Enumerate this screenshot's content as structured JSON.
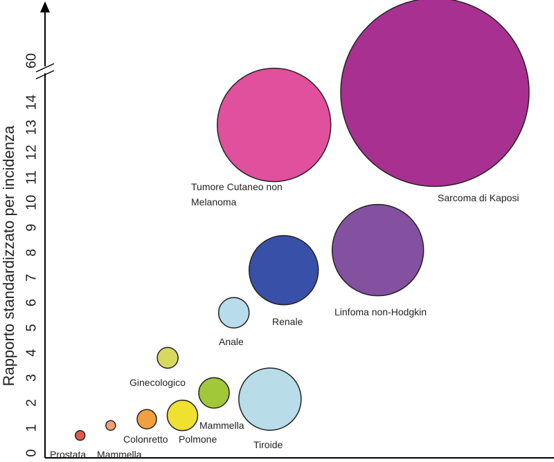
{
  "chart_data": {
    "type": "scatter",
    "y_label": "Rapporto standardizzato per incidenza",
    "categories": [
      "Prostata",
      "Mammella",
      "Colonretto",
      "Polmone",
      "Mammella",
      "Tiroide",
      "Ginecologico",
      "Anale",
      "Renale",
      "Linfoma non-Hodgkin",
      "Tumore Cutaneo non Melanoma",
      "Sarcoma di Kaposi"
    ],
    "x": [
      6.9,
      12.9,
      20,
      27,
      33.2,
      44.2,
      24.1,
      37.1,
      46.9,
      65.4,
      45,
      76.6
    ],
    "values": [
      0.7,
      1.1,
      1.35,
      1.5,
      2.4,
      2.15,
      3.8,
      5.6,
      7.3,
      8.1,
      13.1,
      14.4
    ],
    "sizes": [
      7,
      7,
      14,
      22,
      22,
      45,
      15,
      22,
      50,
      66,
      82,
      136
    ],
    "colors": [
      "#e05a4a",
      "#f0a07a",
      "#f0a040",
      "#f0e030",
      "#a0c838",
      "#b8dce8",
      "#d8d860",
      "#b8dcec",
      "#3850a8",
      "#8450a0",
      "#e0509c",
      "#a83090"
    ],
    "xlim": [
      0,
      100
    ],
    "ylim": [
      0,
      14.6
    ],
    "yticks": [
      0,
      1,
      2,
      3,
      4,
      5,
      6,
      7,
      8,
      9,
      10,
      11,
      12,
      13,
      14,
      60
    ],
    "axis_break": true
  }
}
